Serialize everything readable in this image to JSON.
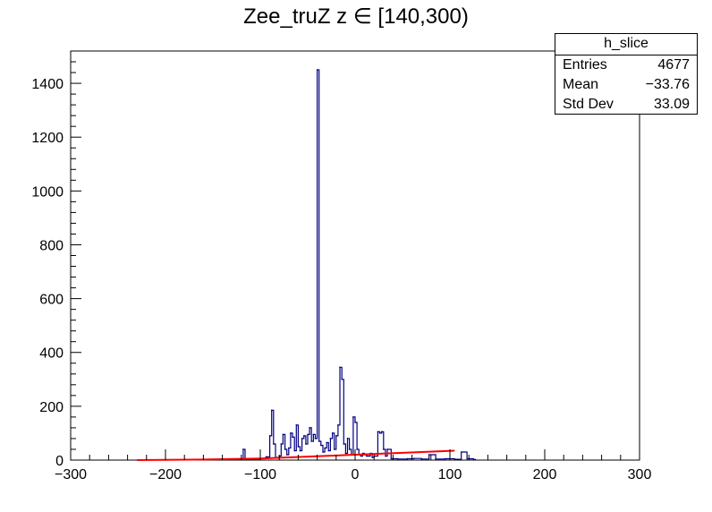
{
  "chart_data": {
    "type": "histogram",
    "title": "Zee_truZ z  ∈ [140,300)",
    "xlabel": "",
    "ylabel": "",
    "xlim": [
      -300,
      300
    ],
    "ylim": [
      0,
      1520
    ],
    "x_ticks": [
      -300,
      -200,
      -100,
      0,
      100,
      200,
      300
    ],
    "x_tick_labels": [
      "−300",
      "−200",
      "−100",
      "0",
      "100",
      "200",
      "300"
    ],
    "y_ticks": [
      0,
      200,
      400,
      600,
      800,
      1000,
      1200,
      1400
    ],
    "y_tick_labels": [
      "0",
      "200",
      "400",
      "600",
      "800",
      "1000",
      "1200",
      "1400"
    ],
    "grid": false,
    "series": [
      {
        "name": "h_slice",
        "color": "#000080",
        "points": [
          [
            -160,
            2
          ],
          [
            -150,
            3
          ],
          [
            -120,
            5
          ],
          [
            -118,
            40
          ],
          [
            -116,
            3
          ],
          [
            -105,
            4
          ],
          [
            -100,
            6
          ],
          [
            -94,
            12
          ],
          [
            -90,
            90
          ],
          [
            -88,
            185
          ],
          [
            -86,
            60
          ],
          [
            -84,
            10
          ],
          [
            -80,
            15
          ],
          [
            -78,
            60
          ],
          [
            -76,
            95
          ],
          [
            -74,
            40
          ],
          [
            -72,
            20
          ],
          [
            -70,
            45
          ],
          [
            -68,
            100
          ],
          [
            -66,
            85
          ],
          [
            -64,
            35
          ],
          [
            -62,
            130
          ],
          [
            -60,
            50
          ],
          [
            -58,
            35
          ],
          [
            -56,
            80
          ],
          [
            -54,
            90
          ],
          [
            -52,
            60
          ],
          [
            -50,
            95
          ],
          [
            -48,
            120
          ],
          [
            -46,
            70
          ],
          [
            -44,
            95
          ],
          [
            -42,
            80
          ],
          [
            -40,
            1450
          ],
          [
            -38,
            70
          ],
          [
            -36,
            55
          ],
          [
            -34,
            30
          ],
          [
            -32,
            45
          ],
          [
            -30,
            65
          ],
          [
            -28,
            35
          ],
          [
            -26,
            80
          ],
          [
            -24,
            100
          ],
          [
            -22,
            40
          ],
          [
            -20,
            90
          ],
          [
            -18,
            130
          ],
          [
            -16,
            345
          ],
          [
            -14,
            300
          ],
          [
            -12,
            60
          ],
          [
            -10,
            25
          ],
          [
            -8,
            80
          ],
          [
            -6,
            40
          ],
          [
            -4,
            20
          ],
          [
            -2,
            160
          ],
          [
            0,
            140
          ],
          [
            2,
            40
          ],
          [
            4,
            20
          ],
          [
            6,
            15
          ],
          [
            8,
            25
          ],
          [
            10,
            20
          ],
          [
            12,
            15
          ],
          [
            14,
            15
          ],
          [
            16,
            25
          ],
          [
            18,
            10
          ],
          [
            20,
            15
          ],
          [
            24,
            105
          ],
          [
            26,
            100
          ],
          [
            28,
            105
          ],
          [
            30,
            40
          ],
          [
            32,
            15
          ],
          [
            34,
            40
          ],
          [
            38,
            5
          ],
          [
            45,
            4
          ],
          [
            55,
            5
          ],
          [
            62,
            6
          ],
          [
            70,
            4
          ],
          [
            78,
            20
          ],
          [
            85,
            4
          ],
          [
            95,
            5
          ],
          [
            105,
            3
          ],
          [
            112,
            30
          ],
          [
            118,
            5
          ],
          [
            125,
            2
          ]
        ]
      },
      {
        "name": "fit",
        "color": "#ff0000",
        "points": [
          [
            -230,
            0
          ],
          [
            -160,
            2
          ],
          [
            -100,
            6
          ],
          [
            -50,
            13
          ],
          [
            0,
            20
          ],
          [
            50,
            27
          ],
          [
            105,
            35
          ]
        ]
      }
    ]
  },
  "stats": {
    "title": "h_slice",
    "rows": [
      {
        "label": "Entries",
        "value": "4677"
      },
      {
        "label": "Mean",
        "value": "−33.76"
      },
      {
        "label": "Std Dev",
        "value": "33.09"
      }
    ]
  }
}
